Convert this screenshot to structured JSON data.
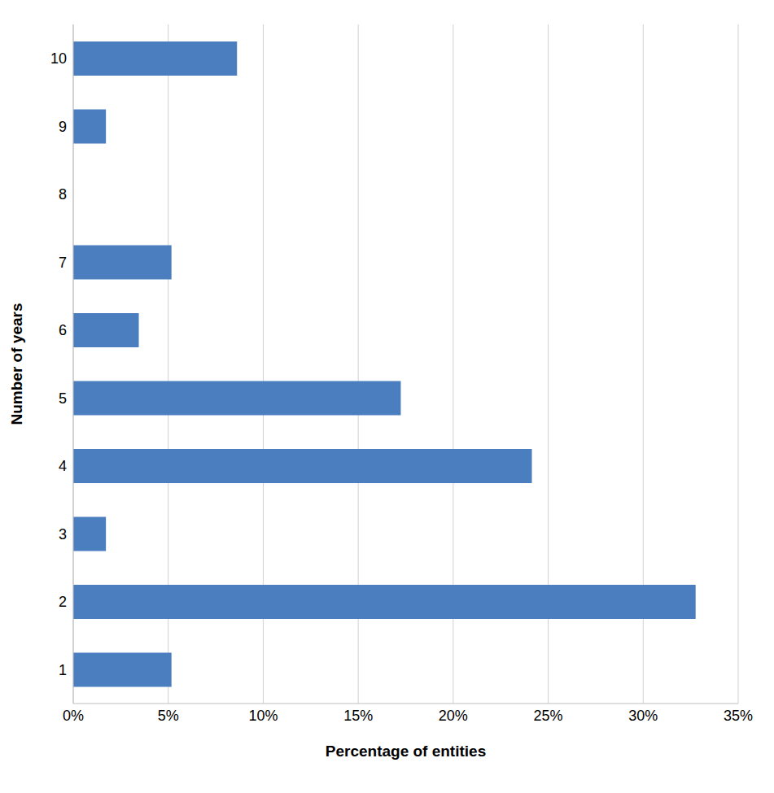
{
  "chart_data": {
    "type": "bar",
    "orientation": "horizontal",
    "x_label": "Percentage of entities",
    "y_label": "Number of years",
    "categories": [
      "1",
      "2",
      "3",
      "4",
      "5",
      "6",
      "7",
      "8",
      "9",
      "10"
    ],
    "values": [
      5.17,
      32.76,
      1.72,
      24.14,
      17.24,
      3.45,
      5.17,
      0,
      1.72,
      8.62
    ],
    "color": "#4a7ebf",
    "xlim": [
      0,
      35
    ],
    "xticks": [
      {
        "value": 0,
        "label": "0%"
      },
      {
        "value": 5,
        "label": "5%"
      },
      {
        "value": 10,
        "label": "10%"
      },
      {
        "value": 15,
        "label": "15%"
      },
      {
        "value": 20,
        "label": "20%"
      },
      {
        "value": 25,
        "label": "25%"
      },
      {
        "value": 30,
        "label": "30%"
      },
      {
        "value": 35,
        "label": "35%"
      }
    ],
    "grid": true
  }
}
